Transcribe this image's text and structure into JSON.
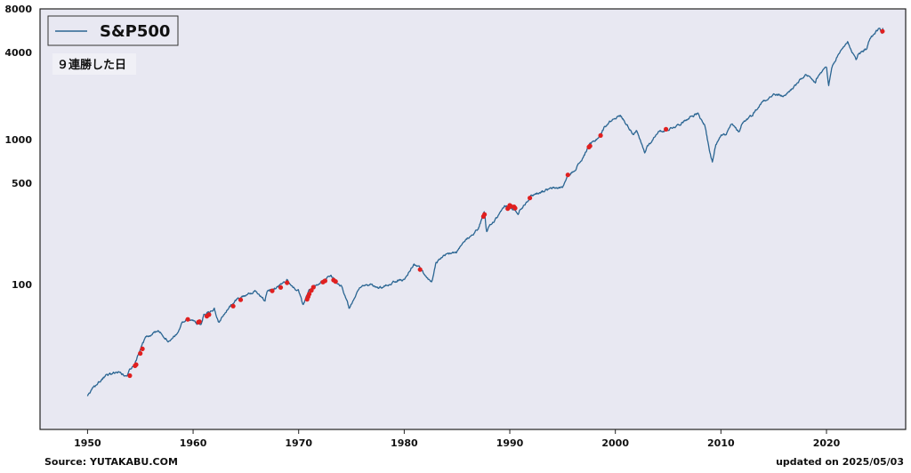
{
  "chart_data": {
    "type": "line",
    "yscale": "log",
    "ylim": [
      10,
      8000
    ],
    "xlim": [
      1945.5,
      2027.5
    ],
    "yticks": [
      100,
      500,
      1000,
      4000,
      8000
    ],
    "ytick_labels": [
      "100",
      "500",
      "1000",
      "4000",
      "8000"
    ],
    "xticks": [
      1950,
      1960,
      1970,
      1980,
      1990,
      2000,
      2010,
      2020
    ],
    "xtick_labels": [
      "1950",
      "1960",
      "1970",
      "1980",
      "1990",
      "2000",
      "2010",
      "2020"
    ],
    "grid": false,
    "legend_position": "top-left",
    "series": [
      {
        "name": "S&P500",
        "color": "#2a6592",
        "x": [
          1950.0,
          1950.5,
          1951.0,
          1952.0,
          1953.0,
          1953.7,
          1954.0,
          1954.5,
          1955.0,
          1955.5,
          1956.0,
          1956.5,
          1957.0,
          1957.8,
          1958.0,
          1958.5,
          1959.0,
          1959.5,
          1960.0,
          1960.8,
          1961.0,
          1961.5,
          1962.0,
          1962.4,
          1962.6,
          1963.0,
          1963.5,
          1964.0,
          1964.5,
          1965.0,
          1965.5,
          1966.0,
          1966.8,
          1967.0,
          1967.5,
          1968.0,
          1968.9,
          1969.5,
          1970.0,
          1970.4,
          1970.8,
          1971.0,
          1971.5,
          1972.0,
          1972.5,
          1973.0,
          1973.5,
          1974.0,
          1974.4,
          1974.8,
          1975.0,
          1975.5,
          1976.0,
          1977.0,
          1978.0,
          1979.0,
          1980.0,
          1980.9,
          1981.5,
          1982.0,
          1982.6,
          1983.0,
          1984.0,
          1985.0,
          1986.0,
          1987.0,
          1987.6,
          1987.8,
          1988.0,
          1989.0,
          1989.5,
          1990.0,
          1990.8,
          1991.0,
          1992.0,
          1993.0,
          1994.0,
          1995.0,
          1995.5,
          1996.0,
          1997.0,
          1997.5,
          1998.0,
          1998.6,
          1999.0,
          1999.5,
          2000.0,
          2000.5,
          2001.0,
          2001.7,
          2002.0,
          2002.8,
          2003.0,
          2003.5,
          2004.0,
          2005.0,
          2006.0,
          2007.0,
          2007.8,
          2008.0,
          2008.5,
          2008.9,
          2009.2,
          2009.5,
          2010.0,
          2010.5,
          2011.0,
          2011.7,
          2012.0,
          2013.0,
          2014.0,
          2015.0,
          2016.0,
          2017.0,
          2018.0,
          2018.97,
          2019.0,
          2020.0,
          2020.2,
          2020.5,
          2021.0,
          2021.5,
          2022.0,
          2022.4,
          2022.8,
          2023.0,
          2023.8,
          2024.0,
          2024.5,
          2025.0,
          2025.27,
          2025.34
        ],
        "values": [
          17,
          19,
          21,
          24,
          25,
          23,
          26,
          29,
          36,
          43,
          45,
          48,
          46,
          40,
          42,
          46,
          55,
          58,
          56,
          53,
          62,
          65,
          68,
          55,
          57,
          64,
          70,
          77,
          82,
          85,
          87,
          90,
          78,
          88,
          92,
          96,
          108,
          95,
          90,
          72,
          84,
          92,
          99,
          103,
          110,
          116,
          104,
          98,
          85,
          68,
          72,
          90,
          100,
          98,
          95,
          105,
          108,
          138,
          130,
          115,
          104,
          140,
          162,
          167,
          210,
          242,
          320,
          230,
          250,
          300,
          350,
          340,
          310,
          330,
          410,
          440,
          460,
          470,
          560,
          600,
          760,
          920,
          970,
          1080,
          1230,
          1340,
          1430,
          1460,
          1300,
          1100,
          1150,
          800,
          900,
          990,
          1130,
          1180,
          1270,
          1430,
          1520,
          1400,
          1250,
          850,
          700,
          920,
          1100,
          1080,
          1280,
          1130,
          1300,
          1500,
          1850,
          2050,
          2000,
          2350,
          2800,
          2450,
          2600,
          3230,
          2300,
          3100,
          3700,
          4300,
          4750,
          4100,
          3600,
          3850,
          4300,
          4750,
          5400,
          5850,
          5500,
          5900
        ]
      }
    ],
    "annotation": "９連勝した日",
    "markers": {
      "name": "９連勝した日",
      "color": "#e02020",
      "x": [
        1954.0,
        1954.5,
        1954.6,
        1955.0,
        1955.2,
        1959.5,
        1960.5,
        1960.6,
        1961.3,
        1961.5,
        1963.8,
        1964.5,
        1967.5,
        1968.3,
        1968.9,
        1970.8,
        1970.9,
        1971.0,
        1971.2,
        1971.4,
        1972.3,
        1972.5,
        1973.3,
        1973.5,
        1981.5,
        1987.5,
        1987.6,
        1989.8,
        1989.9,
        1990.0,
        1990.1,
        1990.4,
        1990.5,
        1991.9,
        1995.5,
        1997.5,
        1997.6,
        1998.6,
        2004.8,
        2025.3
      ],
      "y": [
        23.5,
        27.5,
        28.0,
        33.5,
        36.0,
        57.5,
        55.0,
        55.5,
        60.5,
        62.0,
        71.0,
        78.5,
        90.5,
        95.5,
        103.0,
        79.0,
        82.5,
        86.0,
        91.0,
        96.0,
        104.0,
        106.0,
        107.5,
        105.0,
        127.0,
        295.0,
        305.0,
        334.0,
        341.0,
        352.0,
        347.0,
        344.0,
        337.0,
        396.0,
        572.0,
        890.0,
        905.0,
        1070.0,
        1180.0,
        5600.0
      ]
    }
  },
  "footer": {
    "source": "Source: YUTAKABU.COM",
    "updated": "updated on 2025/05/03"
  },
  "colors": {
    "plot_background": "#e8e8f2",
    "line": "#2a6592",
    "marker": "#e02020",
    "axis": "#222222"
  }
}
